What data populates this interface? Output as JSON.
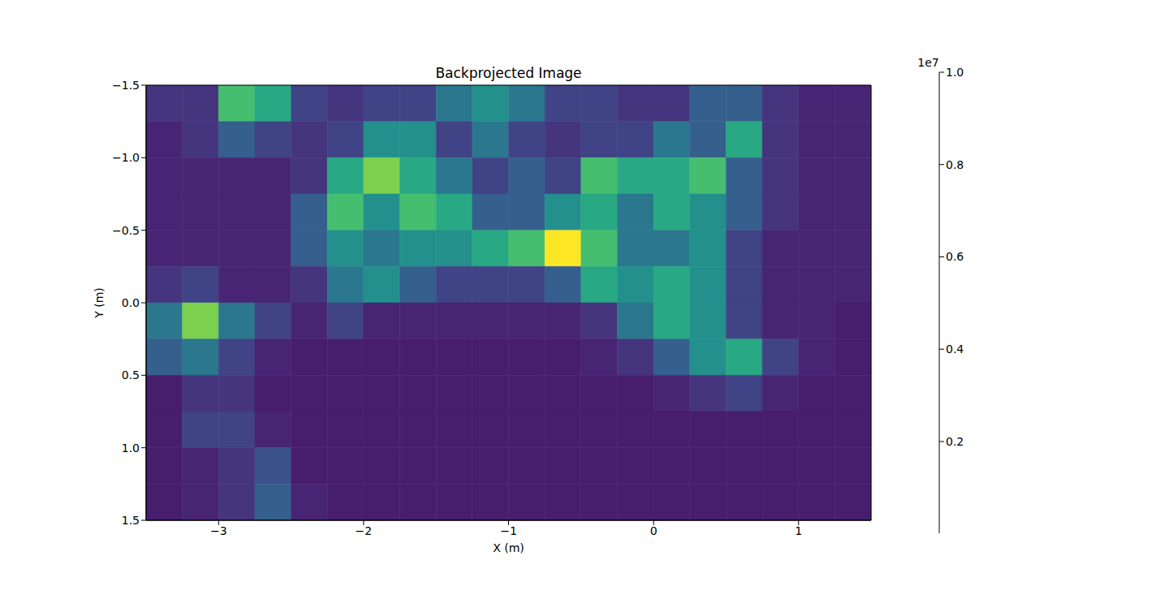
{
  "chart_data": {
    "type": "heatmap",
    "title": "Backprojected Image",
    "x_label": "X (m)",
    "y_label": "Y (m)",
    "xlim": [
      -3.5,
      1.5
    ],
    "ylim": [
      -1.5,
      1.5
    ],
    "xticks": [
      {
        "value": -3,
        "label": "−3"
      },
      {
        "value": -2,
        "label": "−2"
      },
      {
        "value": -1,
        "label": "−1"
      },
      0,
      1
    ],
    "yticks": [
      {
        "value": -1.5,
        "label": "−1.5"
      },
      {
        "value": -1.0,
        "label": "−1.0"
      },
      {
        "value": -0.5,
        "label": "−0.5"
      },
      {
        "value": 0,
        "label": "0.0"
      },
      {
        "value": 0.5,
        "label": "0.5"
      },
      {
        "value": 1.0,
        "label": "1.0"
      },
      {
        "value": 1.5,
        "label": "1.5"
      }
    ],
    "x_edges": [
      -3.5,
      -3.25,
      -3.0,
      -2.75,
      -2.5,
      -2.25,
      -2.0,
      -1.75,
      -1.5,
      -1.25,
      -1.0,
      -0.75,
      -0.5,
      -0.25,
      0,
      0.25,
      0.5,
      0.75,
      1.0,
      1.25,
      1.5
    ],
    "y_edges": [
      -1.5,
      -1.25,
      -1.0,
      -0.75,
      -0.5,
      -0.25,
      0,
      0.25,
      0.5,
      0.75,
      1.0,
      1.25,
      1.5
    ],
    "cells": [
      [
        1500000,
        1500000,
        7000000,
        6000000,
        2000000,
        1500000,
        2000000,
        2000000,
        4000000,
        5000000,
        4000000,
        2000000,
        2000000,
        1500000,
        1500000,
        3000000,
        3000000,
        1500000,
        1000000,
        1000000
      ],
      [
        1000000,
        1500000,
        3000000,
        2000000,
        1500000,
        2000000,
        5000000,
        5000000,
        2000000,
        4000000,
        2000000,
        1500000,
        2000000,
        2000000,
        4000000,
        3000000,
        6000000,
        1500000,
        1000000,
        1000000
      ],
      [
        1000000,
        1000000,
        1000000,
        1000000,
        1500000,
        6000000,
        8000000,
        6000000,
        4000000,
        2000000,
        3000000,
        2000000,
        7000000,
        6000000,
        6000000,
        7000000,
        3000000,
        1500000,
        1000000,
        1000000
      ],
      [
        1000000,
        1000000,
        1000000,
        1000000,
        3000000,
        7000000,
        5000000,
        7000000,
        6000000,
        3000000,
        3000000,
        5000000,
        6000000,
        4000000,
        6000000,
        5000000,
        3000000,
        1500000,
        1000000,
        1000000
      ],
      [
        1000000,
        1000000,
        1000000,
        1000000,
        3000000,
        5000000,
        4000000,
        5000000,
        5000000,
        6000000,
        7000000,
        10000000,
        7000000,
        4000000,
        4000000,
        5000000,
        2000000,
        1000000,
        1000000,
        1000000
      ],
      [
        1500000,
        2000000,
        1000000,
        1000000,
        1500000,
        4000000,
        5000000,
        3000000,
        2000000,
        2000000,
        2000000,
        3000000,
        6000000,
        5000000,
        6000000,
        5000000,
        2000000,
        1000000,
        1000000,
        1000000
      ],
      [
        4000000,
        8000000,
        4000000,
        2000000,
        1000000,
        2000000,
        1000000,
        1000000,
        1000000,
        1000000,
        1000000,
        1000000,
        1500000,
        4000000,
        6000000,
        5000000,
        2000000,
        1000000,
        1000000,
        800000
      ],
      [
        3000000,
        4000000,
        2000000,
        1000000,
        800000,
        800000,
        800000,
        800000,
        800000,
        800000,
        800000,
        800000,
        1000000,
        1500000,
        3000000,
        5000000,
        6000000,
        2000000,
        1000000,
        800000
      ],
      [
        800000,
        1500000,
        1500000,
        800000,
        800000,
        800000,
        800000,
        800000,
        800000,
        800000,
        800000,
        800000,
        800000,
        800000,
        1000000,
        1500000,
        2000000,
        1000000,
        800000,
        800000
      ],
      [
        800000,
        2000000,
        2000000,
        1000000,
        800000,
        800000,
        800000,
        800000,
        800000,
        800000,
        800000,
        800000,
        800000,
        800000,
        800000,
        800000,
        800000,
        800000,
        800000,
        800000
      ],
      [
        800000,
        1000000,
        1500000,
        2500000,
        800000,
        800000,
        800000,
        800000,
        800000,
        800000,
        800000,
        800000,
        800000,
        800000,
        800000,
        800000,
        800000,
        800000,
        800000,
        800000
      ],
      [
        800000,
        1000000,
        1500000,
        3000000,
        1000000,
        800000,
        800000,
        800000,
        800000,
        800000,
        800000,
        800000,
        800000,
        800000,
        800000,
        800000,
        800000,
        800000,
        800000,
        800000
      ]
    ],
    "colorbar": {
      "range": [
        13000,
        10000000
      ],
      "ticks": [
        {
          "value": 2000000,
          "label": "0.2"
        },
        {
          "value": 4000000,
          "label": "0.4"
        },
        {
          "value": 6000000,
          "label": "0.6"
        },
        {
          "value": 8000000,
          "label": "0.8"
        },
        {
          "value": 10000000,
          "label": "1.0"
        }
      ],
      "offset_label": "1e7"
    }
  }
}
